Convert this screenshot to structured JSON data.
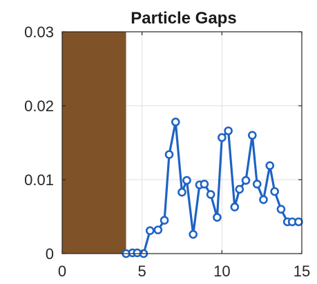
{
  "chart_data": {
    "type": "line",
    "title": "Particle Gaps",
    "xlabel": "",
    "ylabel": "",
    "xlim": [
      0,
      15
    ],
    "ylim": [
      0,
      0.03
    ],
    "xticks": [
      0,
      5,
      10,
      15
    ],
    "xtick_labels": [
      "0",
      "5",
      "10",
      "15"
    ],
    "yticks": [
      0,
      0.01,
      0.02,
      0.03
    ],
    "ytick_labels": [
      "0",
      "0.01",
      "0.02",
      "0.03"
    ],
    "grid": true,
    "shaded_region": {
      "x_start": 0,
      "x_end": 4,
      "color": "#7f5228"
    },
    "series": [
      {
        "color": "#1f62c4",
        "marker": "circle",
        "x": [
          4.0,
          4.4,
          4.7,
          5.1,
          5.5,
          6.0,
          6.4,
          6.7,
          7.1,
          7.5,
          7.8,
          8.2,
          8.6,
          8.9,
          9.3,
          9.7,
          10.0,
          10.4,
          10.8,
          11.1,
          11.5,
          11.9,
          12.2,
          12.6,
          13.0,
          13.3,
          13.7,
          14.1,
          14.4,
          14.8
        ],
        "y": [
          0.0,
          0.0001,
          0.0001,
          0.0,
          0.0031,
          0.0032,
          0.0045,
          0.0134,
          0.0178,
          0.0083,
          0.0099,
          0.0026,
          0.0093,
          0.0094,
          0.008,
          0.0049,
          0.0157,
          0.0166,
          0.0063,
          0.0087,
          0.0099,
          0.016,
          0.0094,
          0.0073,
          0.0119,
          0.0084,
          0.006,
          0.0043,
          0.0043,
          0.0043
        ]
      }
    ]
  }
}
